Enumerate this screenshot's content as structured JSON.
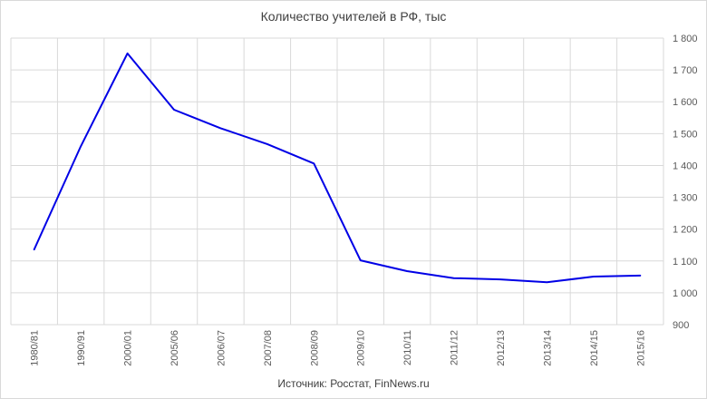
{
  "chart_data": {
    "type": "line",
    "title": "Количество учителей в РФ, тыс",
    "categories": [
      "1980/81",
      "1990/91",
      "2000/01",
      "2005/06",
      "2006/07",
      "2007/08",
      "2008/09",
      "2009/10",
      "2010/11",
      "2011/12",
      "2012/13",
      "2013/14",
      "2014/15",
      "2015/16"
    ],
    "series": [
      {
        "values": [
          1136,
          1460,
          1752,
          1575,
          1517,
          1467,
          1406,
          1102,
          1068,
          1046,
          1042,
          1033,
          1051,
          1054
        ]
      }
    ],
    "y_ticks": [
      "900",
      "1 000",
      "1 100",
      "1 200",
      "1 300",
      "1 400",
      "1 500",
      "1 600",
      "1 700",
      "1 800"
    ],
    "ylim": [
      900,
      1800
    ],
    "y_axis_side": "right",
    "grid": true,
    "line_color": "#0000e6",
    "grid_color": "#d9d9d9",
    "xlabel": "",
    "ylabel": ""
  },
  "source_note": "Источник: Росстат, FinNews.ru"
}
